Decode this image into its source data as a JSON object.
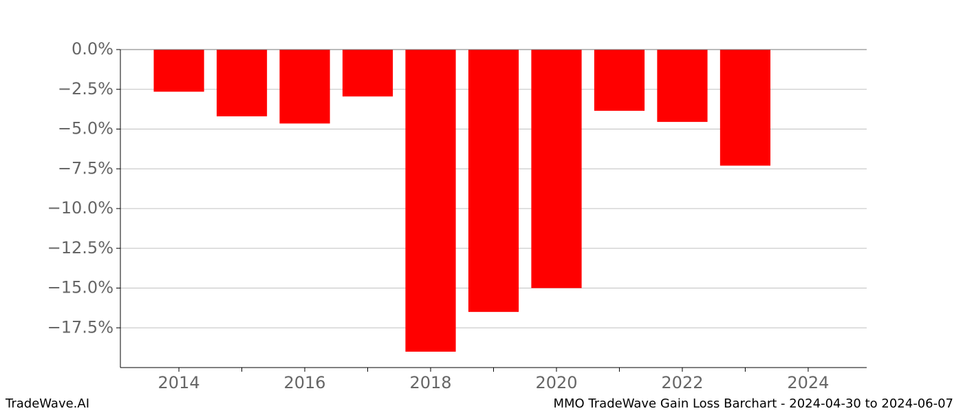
{
  "chart_data": {
    "type": "bar",
    "x": [
      2014,
      2015,
      2016,
      2017,
      2018,
      2019,
      2020,
      2021,
      2022,
      2023
    ],
    "values": [
      -2.65,
      -4.2,
      -4.65,
      -2.95,
      -19.0,
      -16.5,
      -15.0,
      -3.85,
      -4.55,
      -7.3
    ],
    "color": "#ff0000",
    "xlim": [
      2013.07,
      2024.93
    ],
    "xticks": [
      2014,
      2016,
      2018,
      2020,
      2022,
      2024
    ],
    "xminorticks": [
      2015,
      2017,
      2019,
      2021,
      2023
    ],
    "ylim": [
      -20,
      0
    ],
    "yticks": [
      {
        "value": 0,
        "label": "0.0%"
      },
      {
        "value": -2.5,
        "label": "−2.5%"
      },
      {
        "value": -5,
        "label": "−5.0%"
      },
      {
        "value": -7.5,
        "label": "−7.5%"
      },
      {
        "value": -10,
        "label": "−10.0%"
      },
      {
        "value": -12.5,
        "label": "−12.5%"
      },
      {
        "value": -15,
        "label": "−15.0%"
      },
      {
        "value": -17.5,
        "label": "−17.5%"
      }
    ],
    "grid": true
  },
  "footer": {
    "left": "TradeWave.AI",
    "right": "MMO TradeWave Gain Loss Barchart - 2024-04-30 to 2024-06-07"
  }
}
